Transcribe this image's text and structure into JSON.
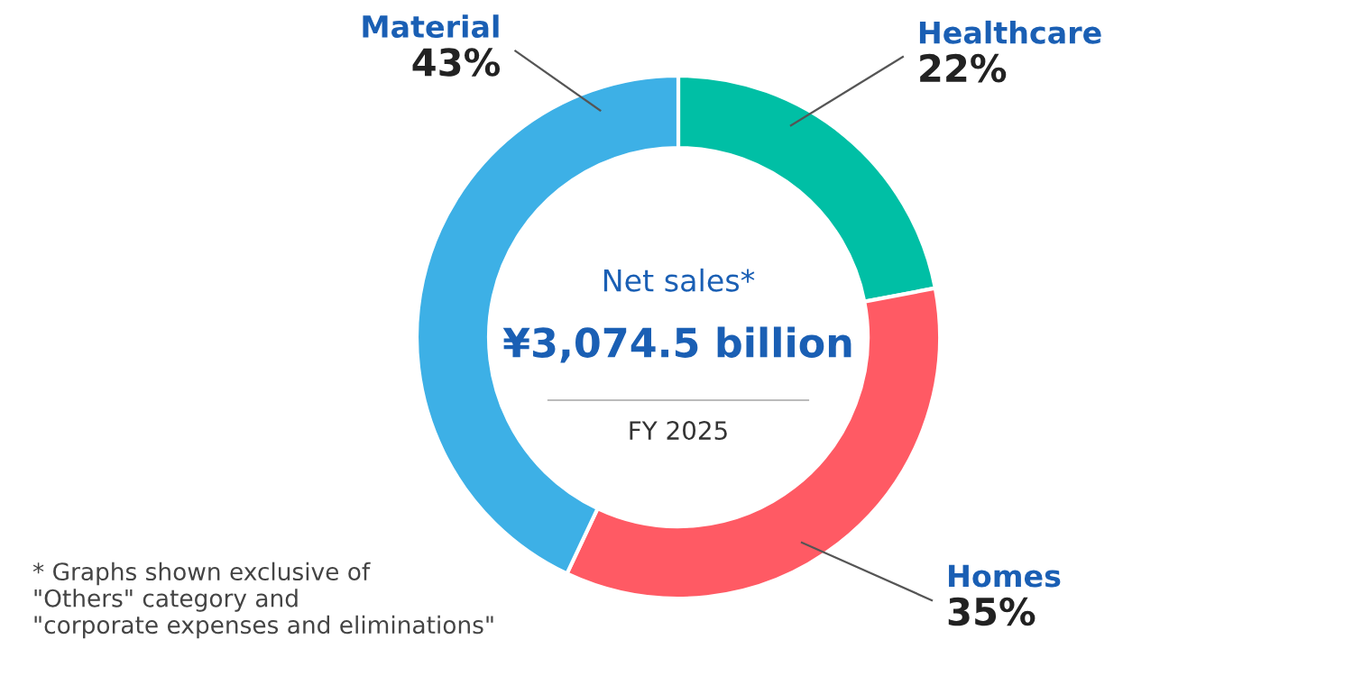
{
  "chart_data": {
    "type": "donut",
    "categories": [
      "Healthcare",
      "Homes",
      "Material"
    ],
    "values": [
      22,
      35,
      43
    ],
    "colors": [
      "#00bfa5",
      "#ff5a64",
      "#3db0e6"
    ],
    "value_labels": [
      "22%",
      "35%",
      "43%"
    ],
    "annotations": [
      "Net sales*",
      "¥3,074.5 billion",
      "FY 2025",
      "* Graphs shown exclusive of\n\"Others\" category and\n\"corporate expenses and eliminations\""
    ],
    "legend": false
  }
}
